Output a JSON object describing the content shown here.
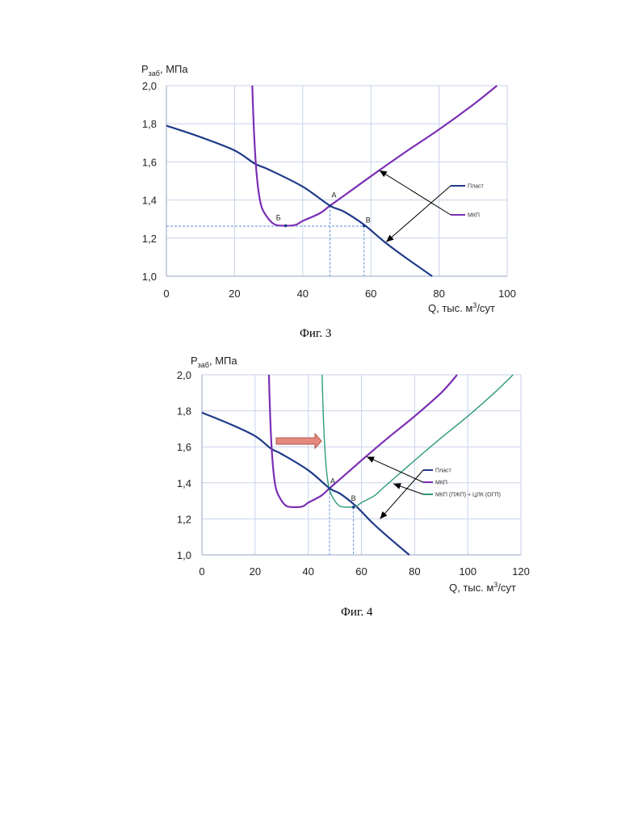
{
  "chart_data": [
    {
      "type": "line",
      "ylabel_main": "P",
      "ylabel_sub": "заб",
      "ylabel_rest": ", МПа",
      "xlabel_main": "Q, тыс. м",
      "xlabel_sup": "3",
      "xlabel_rest": "/сут",
      "xlim": [
        0,
        100
      ],
      "ylim": [
        1.0,
        2.0
      ],
      "xticks": [
        "0",
        "20",
        "40",
        "60",
        "80",
        "100"
      ],
      "yticks": [
        "1,0",
        "1,2",
        "1,4",
        "1,6",
        "1,8",
        "2,0"
      ],
      "grid": true,
      "legend_position": "right",
      "series": [
        {
          "name": "Пласт",
          "color": "#1f3a8a",
          "x": [
            0,
            10,
            20,
            26,
            30,
            40,
            48,
            52,
            58,
            64,
            70,
            78
          ],
          "y": [
            1.79,
            1.73,
            1.66,
            1.59,
            1.56,
            1.47,
            1.37,
            1.34,
            1.27,
            1.18,
            1.1,
            1.0
          ]
        },
        {
          "name": "МКП",
          "color": "#7b2fb5",
          "x": [
            25.2,
            25.6,
            26.2,
            27,
            28,
            30,
            32,
            35,
            38,
            40,
            45,
            48,
            55,
            62,
            70,
            80,
            90,
            97
          ],
          "y": [
            2.0,
            1.8,
            1.6,
            1.45,
            1.36,
            1.3,
            1.27,
            1.265,
            1.27,
            1.29,
            1.33,
            1.37,
            1.46,
            1.55,
            1.65,
            1.77,
            1.9,
            2.0
          ]
        }
      ],
      "points": [
        {
          "label": "А",
          "x": 48,
          "y": 1.37
        },
        {
          "label": "Б",
          "x": 35,
          "y": 1.265
        },
        {
          "label": "В",
          "x": 58,
          "y": 1.265
        }
      ],
      "caption": "Фиг. 3"
    },
    {
      "type": "line",
      "ylabel_main": "P",
      "ylabel_sub": "заб",
      "ylabel_rest": ", МПа",
      "xlabel_main": "Q, тыс. м",
      "xlabel_sup": "3",
      "xlabel_rest": "/сут",
      "xlim": [
        0,
        120
      ],
      "ylim": [
        1.0,
        2.0
      ],
      "xticks": [
        "0",
        "20",
        "40",
        "60",
        "80",
        "100",
        "120"
      ],
      "yticks": [
        "1,0",
        "1,2",
        "1,4",
        "1,6",
        "1,8",
        "2,0"
      ],
      "grid": true,
      "legend_position": "right",
      "series": [
        {
          "name": "Пласт",
          "color": "#1f3a8a",
          "x": [
            0,
            10,
            20,
            26,
            30,
            40,
            48,
            52,
            58,
            64,
            70,
            78
          ],
          "y": [
            1.79,
            1.73,
            1.66,
            1.59,
            1.56,
            1.47,
            1.37,
            1.34,
            1.27,
            1.18,
            1.1,
            1.0
          ]
        },
        {
          "name": "МКП",
          "color": "#7b2fb5",
          "x": [
            25.2,
            25.6,
            26.2,
            27,
            28,
            30,
            32,
            35,
            38,
            40,
            45,
            48,
            55,
            62,
            70,
            80,
            90,
            96
          ],
          "y": [
            2.0,
            1.8,
            1.6,
            1.45,
            1.36,
            1.3,
            1.27,
            1.265,
            1.27,
            1.29,
            1.33,
            1.37,
            1.46,
            1.55,
            1.65,
            1.77,
            1.9,
            2.0
          ]
        },
        {
          "name": "МКП (ПЖП) + ЦЛК (ОГП)",
          "color": "#2e9a78",
          "x": [
            45.2,
            45.6,
            46.2,
            47,
            48,
            50,
            52,
            55,
            58,
            60,
            65,
            68,
            75,
            82,
            90,
            100,
            110,
            117
          ],
          "y": [
            2.0,
            1.8,
            1.6,
            1.45,
            1.36,
            1.3,
            1.27,
            1.265,
            1.27,
            1.29,
            1.33,
            1.37,
            1.46,
            1.55,
            1.65,
            1.77,
            1.9,
            2.0
          ]
        }
      ],
      "points": [
        {
          "label": "А",
          "x": 48,
          "y": 1.37
        },
        {
          "label": "В",
          "x": 57,
          "y": 1.265
        }
      ],
      "caption": "Фиг. 4"
    }
  ]
}
